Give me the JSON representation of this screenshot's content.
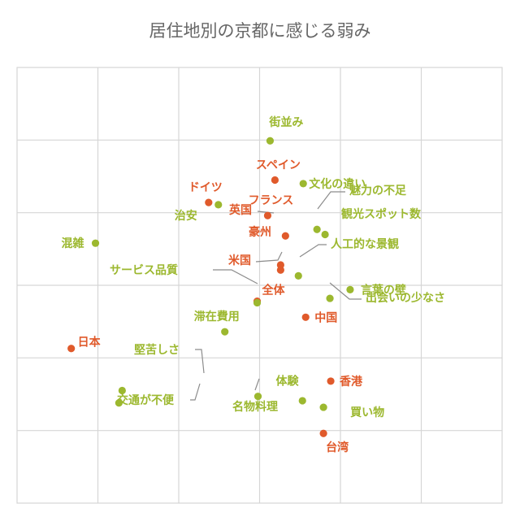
{
  "chart_data": {
    "type": "scatter",
    "title": "居住地別の京都に感じる弱み",
    "xlabel": "",
    "ylabel": "",
    "grid": true,
    "legend": "none",
    "colors": {
      "country": "#e05a2b",
      "attribute": "#9cb82f"
    },
    "series": [
      {
        "group": "country",
        "points": [
          {
            "label": "スペイン",
            "x": 2.19,
            "y": 4.45
          },
          {
            "label": "ドイツ",
            "x": 1.37,
            "y": 4.14
          },
          {
            "label": "フランス",
            "x": 2.1,
            "y": 3.96
          },
          {
            "label": "英国",
            "x": 2.32,
            "y": 3.68
          },
          {
            "label": "豪州",
            "x": 2.26,
            "y": 3.28
          },
          {
            "label": "米国",
            "x": 2.26,
            "y": 3.21
          },
          {
            "label": "全体",
            "x": 1.97,
            "y": 2.78
          },
          {
            "label": "中国",
            "x": 2.57,
            "y": 2.56
          },
          {
            "label": "日本",
            "x": -0.33,
            "y": 2.13
          },
          {
            "label": "香港",
            "x": 2.88,
            "y": 1.68
          },
          {
            "label": "台湾",
            "x": 2.79,
            "y": 0.96
          }
        ]
      },
      {
        "group": "attribute",
        "points": [
          {
            "label": "街並み",
            "x": 2.13,
            "y": 4.99
          },
          {
            "label": "文化の違い",
            "x": 2.54,
            "y": 4.4
          },
          {
            "label": "治安",
            "x": 1.49,
            "y": 4.11
          },
          {
            "label": "魅力の不足",
            "x": 2.71,
            "y": 3.77
          },
          {
            "label": "観光スポット数",
            "x": 2.81,
            "y": 3.7
          },
          {
            "label": "混雑",
            "x": -0.03,
            "y": 3.58
          },
          {
            "label": "人工的な景観",
            "x": 2.48,
            "y": 3.13
          },
          {
            "label": "言葉の壁",
            "x": 3.12,
            "y": 2.94
          },
          {
            "label": "サービス品質",
            "x": 1.97,
            "y": 2.76
          },
          {
            "label": "出会いの少なさ",
            "x": 2.87,
            "y": 2.82
          },
          {
            "label": "滞在費用",
            "x": 1.57,
            "y": 2.36
          },
          {
            "label": "堅苦しさ",
            "x": 0.3,
            "y": 1.55
          },
          {
            "label": "交通が不便",
            "x": 0.26,
            "y": 1.38
          },
          {
            "label": "体験",
            "x": 1.98,
            "y": 1.47
          },
          {
            "label": "名物料理",
            "x": 2.53,
            "y": 1.41
          },
          {
            "label": "買い物",
            "x": 2.79,
            "y": 1.32
          }
        ]
      }
    ],
    "xlim": [
      -1,
      5
    ],
    "ylim": [
      0,
      6
    ]
  }
}
